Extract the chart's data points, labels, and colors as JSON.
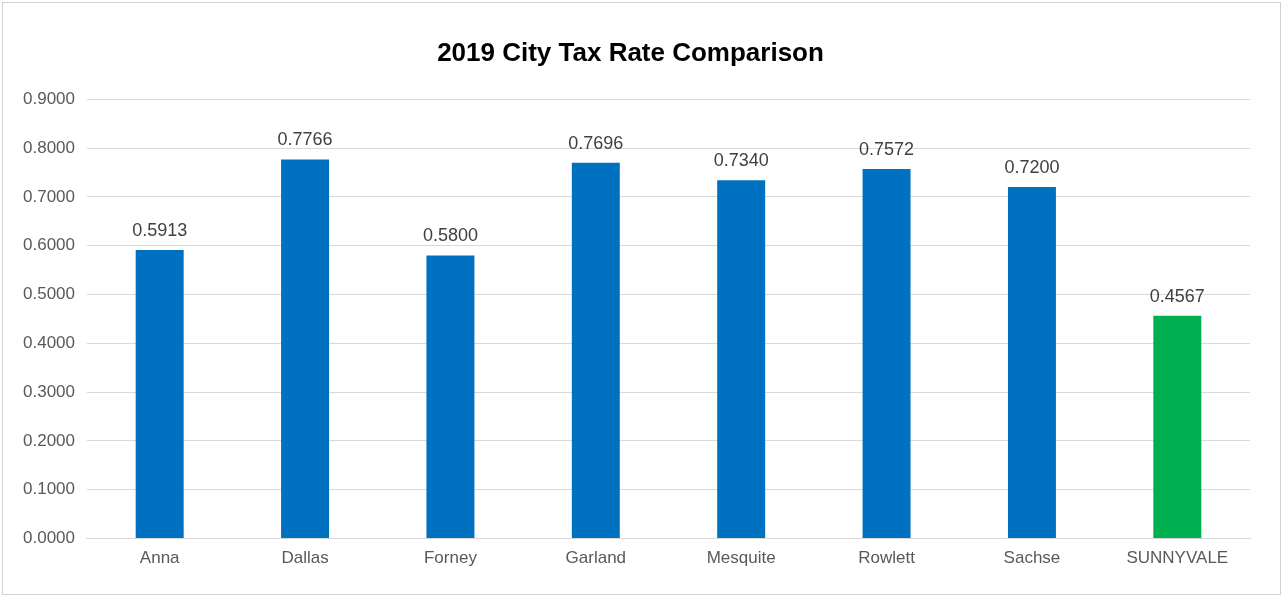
{
  "chart_data": {
    "type": "bar",
    "title": "2019 City Tax Rate Comparison",
    "categories": [
      "Anna",
      "Dallas",
      "Forney",
      "Garland",
      "Mesquite",
      "Rowlett",
      "Sachse",
      "SUNNYVALE"
    ],
    "values": [
      0.5913,
      0.7766,
      0.58,
      0.7696,
      0.734,
      0.7572,
      0.72,
      0.4567
    ],
    "colors": [
      "#0070c0",
      "#0070c0",
      "#0070c0",
      "#0070c0",
      "#0070c0",
      "#0070c0",
      "#0070c0",
      "#00b050"
    ],
    "value_labels": [
      "0.5913",
      "0.7766",
      "0.5800",
      "0.7696",
      "0.7340",
      "0.7572",
      "0.7200",
      "0.4567"
    ],
    "ylim": [
      0,
      0.9
    ],
    "yticks": [
      {
        "value": 0,
        "label": "0.0000"
      },
      {
        "value": 0.1,
        "label": "0.1000"
      },
      {
        "value": 0.2,
        "label": "0.2000"
      },
      {
        "value": 0.3,
        "label": "0.3000"
      },
      {
        "value": 0.4,
        "label": "0.4000"
      },
      {
        "value": 0.5,
        "label": "0.5000"
      },
      {
        "value": 0.6,
        "label": "0.6000"
      },
      {
        "value": 0.7,
        "label": "0.7000"
      },
      {
        "value": 0.8,
        "label": "0.8000"
      },
      {
        "value": 0.9,
        "label": "0.9000"
      }
    ],
    "grid": "y",
    "legend": false
  }
}
